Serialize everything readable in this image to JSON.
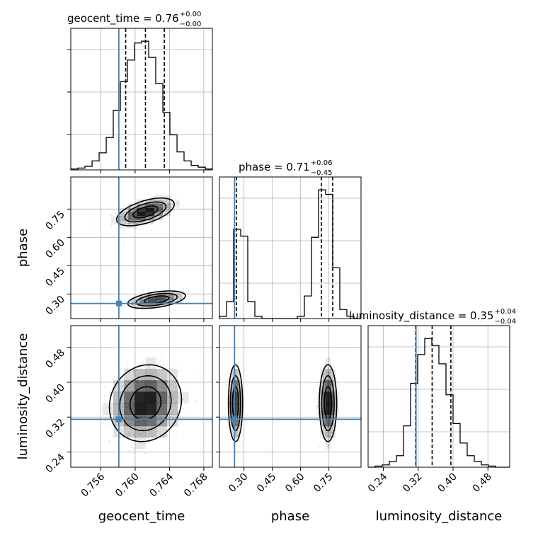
{
  "chart_data": {
    "type": "corner",
    "parameters": [
      "geocent_time",
      "phase",
      "luminosity_distance"
    ],
    "titles": [
      {
        "name": "geocent_time",
        "value": "0.76",
        "plus": "+0.00",
        "minus": "−0.00"
      },
      {
        "name": "phase",
        "value": "0.71",
        "plus": "+0.06",
        "minus": "−0.45"
      },
      {
        "name": "luminosity_distance",
        "value": "0.35",
        "plus": "+0.04",
        "minus": "−0.04"
      }
    ],
    "ranges": {
      "geocent_time": [
        0.7525,
        0.769
      ],
      "phase": [
        0.17,
        0.92
      ],
      "luminosity_distance": [
        0.205,
        0.53
      ]
    },
    "ticks": {
      "geocent_time": [
        "0.756",
        "0.760",
        "0.764",
        "0.768"
      ],
      "phase": [
        "0.30",
        "0.45",
        "0.60",
        "0.75"
      ],
      "luminosity_distance": [
        "0.24",
        "0.32",
        "0.40",
        "0.48"
      ]
    },
    "truths": {
      "geocent_time": 0.7581,
      "phase": 0.25,
      "luminosity_distance": 0.315
    },
    "quantiles": {
      "geocent_time": [
        0.7589,
        0.7612,
        0.7634
      ],
      "phase": [
        0.26,
        0.71,
        0.77
      ],
      "luminosity_distance": [
        0.314,
        0.352,
        0.395
      ]
    },
    "histograms": {
      "geocent_time": {
        "edges": [
          0.7525,
          0.75333,
          0.75415,
          0.75498,
          0.7558,
          0.75663,
          0.75745,
          0.75828,
          0.7591,
          0.75993,
          0.76075,
          0.76158,
          0.7624,
          0.76323,
          0.76405,
          0.76488,
          0.7657,
          0.76653,
          0.76735,
          0.76818,
          0.769
        ],
        "counts": [
          1,
          2,
          4,
          10,
          19,
          36,
          66,
          98,
          122,
          141,
          143,
          125,
          96,
          64,
          39,
          20,
          10,
          5,
          3,
          1
        ]
      },
      "phase": {
        "edges": [
          0.17,
          0.2075,
          0.245,
          0.2825,
          0.32,
          0.3575,
          0.395,
          0.4325,
          0.47,
          0.5075,
          0.545,
          0.5825,
          0.62,
          0.6575,
          0.695,
          0.7325,
          0.77,
          0.8075,
          0.845,
          0.8825,
          0.92
        ],
        "counts": [
          2,
          15,
          79,
          73,
          15,
          2,
          0,
          0,
          0,
          0,
          0,
          2,
          20,
          72,
          114,
          110,
          45,
          8,
          2,
          0
        ]
      },
      "luminosity_distance": {
        "edges": [
          0.205,
          0.22125,
          0.2375,
          0.25375,
          0.27,
          0.28625,
          0.3025,
          0.31875,
          0.335,
          0.35125,
          0.3675,
          0.38375,
          0.4,
          0.41625,
          0.4325,
          0.44875,
          0.465,
          0.48125,
          0.4975,
          0.51375,
          0.53
        ],
        "counts": [
          0,
          1,
          2,
          5,
          10,
          36,
          73,
          98,
          112,
          106,
          90,
          63,
          38,
          21,
          10,
          5,
          2,
          1,
          0,
          0
        ]
      }
    },
    "grid": true,
    "truth_color": "#4682b4",
    "density_color": "#000000"
  }
}
